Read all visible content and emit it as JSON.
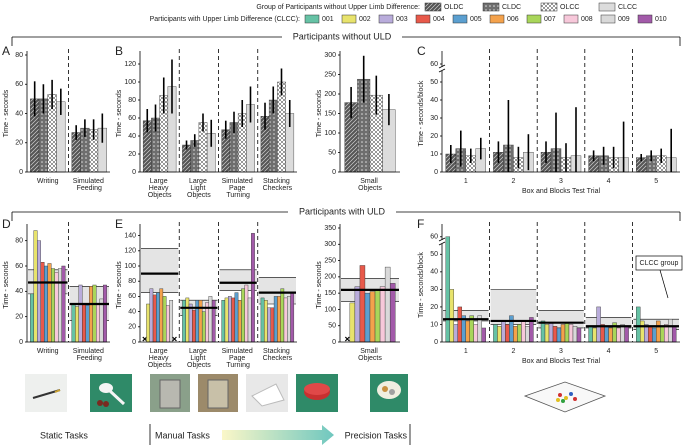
{
  "legend": {
    "groups_title": "Group of Participants without Upper Limb Difference:",
    "participants_title": "Participants with Upper Limb Difference (CLCC):"
  },
  "sections": [
    "Participants without ULD",
    "Participants with ULD"
  ],
  "task_groups": [
    "Static Tasks",
    "Manual Tasks",
    "Precision Tasks"
  ],
  "chart_data": [
    {
      "type": "bar",
      "panel": "A",
      "ylabel": "Time - seconds",
      "categories": [
        "Writing",
        "Simulated Feeding"
      ],
      "ylim": [
        0,
        80
      ],
      "yticks": [
        0,
        20,
        40,
        60,
        80
      ],
      "dividers": true,
      "series": [
        {
          "name": "OLDC",
          "color": "#555555",
          "pattern": "diagonal",
          "values": [
            50,
            27
          ],
          "errors": [
            12,
            5
          ]
        },
        {
          "name": "CLDC",
          "color": "#6e6e6e",
          "pattern": "dots",
          "values": [
            50,
            30
          ],
          "errors": [
            10,
            6
          ]
        },
        {
          "name": "OLCC",
          "color": "#ffffff",
          "pattern": "cross",
          "values": [
            53,
            29
          ],
          "errors": [
            10,
            7
          ]
        },
        {
          "name": "CLCC",
          "color": "#dcdcdc",
          "pattern": "none",
          "values": [
            48,
            30
          ],
          "errors": [
            9,
            10
          ]
        }
      ]
    },
    {
      "type": "bar",
      "panel": "B",
      "ylabel": "Time - seconds",
      "categories": [
        "Large Heavy Objects",
        "Large Light Objects",
        "Simulated Page Turning",
        "Stacking Checkers"
      ],
      "ylim": [
        0,
        130
      ],
      "yticks": [
        0,
        20,
        40,
        60,
        80,
        100,
        120
      ],
      "dividers": true,
      "series": [
        {
          "name": "OLDC",
          "color": "#555555",
          "pattern": "diagonal",
          "values": [
            57,
            30,
            47,
            62
          ],
          "errors": [
            13,
            5,
            10,
            15
          ]
        },
        {
          "name": "CLDC",
          "color": "#6e6e6e",
          "pattern": "dots",
          "values": [
            60,
            35,
            55,
            80
          ],
          "errors": [
            15,
            7,
            12,
            15
          ]
        },
        {
          "name": "OLCC",
          "color": "#ffffff",
          "pattern": "cross",
          "values": [
            85,
            55,
            65,
            100
          ],
          "errors": [
            20,
            10,
            15,
            15
          ]
        },
        {
          "name": "CLCC",
          "color": "#dcdcdc",
          "pattern": "none",
          "values": [
            95,
            43,
            75,
            65
          ],
          "errors": [
            30,
            15,
            20,
            15
          ]
        }
      ]
    },
    {
      "type": "bar",
      "ylabel": "Time - seconds",
      "categories": [
        "Small Objects"
      ],
      "ylim": [
        0,
        300
      ],
      "yticks": [
        0,
        50,
        100,
        150,
        200,
        250,
        300
      ],
      "dividers": false,
      "series": [
        {
          "name": "OLDC",
          "color": "#555555",
          "pattern": "diagonal",
          "values": [
            178
          ],
          "errors": [
            40
          ]
        },
        {
          "name": "CLDC",
          "color": "#6e6e6e",
          "pattern": "dots",
          "values": [
            238
          ],
          "errors": [
            60
          ]
        },
        {
          "name": "OLCC",
          "color": "#ffffff",
          "pattern": "cross",
          "values": [
            197
          ],
          "errors": [
            50
          ]
        },
        {
          "name": "CLCC",
          "color": "#dcdcdc",
          "pattern": "none",
          "values": [
            160
          ],
          "errors": [
            40
          ]
        }
      ]
    },
    {
      "type": "bar",
      "panel": "C",
      "ylabel": "Time - seconds/block",
      "xlabel": "Box and Blocks Test Trial",
      "categories": [
        "1",
        "2",
        "3",
        "4",
        "5"
      ],
      "ylim": [
        0,
        65
      ],
      "yticks": [
        0,
        10,
        20,
        30,
        40,
        50,
        60
      ],
      "dividers": true,
      "axis_break": true,
      "series": [
        {
          "name": "OLDC",
          "color": "#555555",
          "pattern": "diagonal",
          "values": [
            10,
            11,
            11,
            9,
            8
          ],
          "errors": [
            5,
            6,
            6,
            3,
            2
          ]
        },
        {
          "name": "CLDC",
          "color": "#6e6e6e",
          "pattern": "dots",
          "values": [
            13,
            15,
            13,
            9,
            9
          ],
          "errors": [
            10,
            25,
            20,
            5,
            3
          ]
        },
        {
          "name": "OLCC",
          "color": "#ffffff",
          "pattern": "cross",
          "values": [
            9,
            8,
            8,
            8,
            9
          ],
          "errors": [
            4,
            6,
            8,
            6,
            4
          ]
        },
        {
          "name": "CLCC",
          "color": "#dcdcdc",
          "pattern": "none",
          "values": [
            13,
            11,
            9,
            8,
            8
          ],
          "errors": [
            6,
            10,
            27,
            20,
            16
          ]
        }
      ]
    },
    {
      "type": "bar",
      "panel": "D",
      "ylabel": "Time - seconds",
      "categories": [
        "Writing",
        "Simulated Feeding"
      ],
      "ylim": [
        0,
        90
      ],
      "yticks": [
        0,
        20,
        40,
        60,
        80
      ],
      "dividers": true,
      "reference": [
        {
          "low": 38,
          "mean": 47,
          "high": 57
        },
        {
          "low": 17,
          "mean": 30,
          "high": 44
        }
      ],
      "series": [
        {
          "name": "001",
          "color": "#66c2a5",
          "values": [
            38,
            30
          ]
        },
        {
          "name": "002",
          "color": "#e8e36c",
          "values": [
            88,
            28
          ]
        },
        {
          "name": "003",
          "color": "#b9acdb",
          "values": [
            80,
            45
          ]
        },
        {
          "name": "004",
          "color": "#e8594a",
          "values": [
            63,
            30
          ]
        },
        {
          "name": "005",
          "color": "#5b9fd0",
          "values": [
            60,
            29
          ]
        },
        {
          "name": "006",
          "color": "#f4a24c",
          "values": [
            62,
            44
          ]
        },
        {
          "name": "007",
          "color": "#a9d65a",
          "values": [
            58,
            45
          ]
        },
        {
          "name": "008",
          "color": "#f7c8da",
          "values": [
            55,
            30
          ]
        },
        {
          "name": "009",
          "color": "#d9d9d9",
          "values": [
            58,
            34
          ]
        },
        {
          "name": "010",
          "color": "#a25aa9",
          "values": [
            60,
            45
          ]
        }
      ]
    },
    {
      "type": "bar",
      "panel": "E",
      "ylabel": "Time - seconds",
      "categories": [
        "Large Heavy Objects",
        "Large Light Objects",
        "Simulated Page Turning",
        "Stacking Checkers"
      ],
      "ylim": [
        0,
        150
      ],
      "yticks": [
        0,
        20,
        40,
        60,
        80,
        100,
        120,
        140
      ],
      "dividers": true,
      "reference": [
        {
          "low": 65,
          "mean": 90,
          "high": 123
        },
        {
          "low": 35,
          "mean": 45,
          "high": 55
        },
        {
          "low": 68,
          "mean": 78,
          "high": 95
        },
        {
          "low": 50,
          "mean": 65,
          "high": 85
        }
      ],
      "series": [
        {
          "name": "001",
          "color": "#66c2a5",
          "values": [
            null,
            55,
            55,
            58
          ]
        },
        {
          "name": "002",
          "color": "#e8e36c",
          "values": [
            50,
            58,
            58,
            55
          ]
        },
        {
          "name": "003",
          "color": "#b9acdb",
          "values": [
            70,
            50,
            60,
            45
          ]
        },
        {
          "name": "004",
          "color": "#e8594a",
          "values": [
            62,
            42,
            58,
            45
          ]
        },
        {
          "name": "005",
          "color": "#5b9fd0",
          "values": [
            65,
            55,
            65,
            60
          ]
        },
        {
          "name": "006",
          "color": "#f4a24c",
          "values": [
            70,
            55,
            55,
            60
          ]
        },
        {
          "name": "007",
          "color": "#a9d65a",
          "values": [
            60,
            40,
            70,
            70
          ]
        },
        {
          "name": "008",
          "color": "#f7c8da",
          "values": [
            48,
            52,
            75,
            58
          ]
        },
        {
          "name": "009",
          "color": "#d9d9d9",
          "values": [
            55,
            60,
            58,
            60
          ]
        },
        {
          "name": "010",
          "color": "#a25aa9",
          "values": [
            null,
            55,
            143,
            65
          ]
        }
      ]
    },
    {
      "type": "bar",
      "ylabel": "Time - seconds",
      "categories": [
        "Small Objects"
      ],
      "ylim": [
        0,
        350
      ],
      "yticks": [
        0,
        50,
        100,
        150,
        200,
        250,
        300,
        350
      ],
      "dividers": false,
      "reference": [
        {
          "low": 125,
          "mean": 160,
          "high": 195
        }
      ],
      "series": [
        {
          "name": "001",
          "color": "#66c2a5",
          "values": [
            null
          ]
        },
        {
          "name": "002",
          "color": "#e8e36c",
          "values": [
            120
          ]
        },
        {
          "name": "003",
          "color": "#b9acdb",
          "values": [
            170
          ]
        },
        {
          "name": "004",
          "color": "#e8594a",
          "values": [
            235
          ]
        },
        {
          "name": "005",
          "color": "#5b9fd0",
          "values": [
            150
          ]
        },
        {
          "name": "006",
          "color": "#f4a24c",
          "values": [
            155
          ]
        },
        {
          "name": "007",
          "color": "#a9d65a",
          "values": [
            160
          ]
        },
        {
          "name": "008",
          "color": "#f7c8da",
          "values": [
            170
          ]
        },
        {
          "name": "009",
          "color": "#d9d9d9",
          "values": [
            230
          ]
        },
        {
          "name": "010",
          "color": "#a25aa9",
          "values": [
            180
          ]
        }
      ]
    },
    {
      "type": "bar",
      "panel": "F",
      "ylabel": "Time - seconds/block",
      "xlabel": "Box and Blocks Test Trial",
      "categories": [
        "1",
        "2",
        "3",
        "4",
        "5"
      ],
      "ylim": [
        0,
        65
      ],
      "yticks": [
        0,
        10,
        20,
        30,
        40,
        50,
        60
      ],
      "dividers": true,
      "axis_break": true,
      "annotation": "CLCC group",
      "reference": [
        {
          "low": 12,
          "mean": 13,
          "high": 18
        },
        {
          "low": 10,
          "mean": 12,
          "high": 30
        },
        {
          "low": 8,
          "mean": 11,
          "high": 18
        },
        {
          "low": 8,
          "mean": 9,
          "high": 14
        },
        {
          "low": 7,
          "mean": 9,
          "high": 13
        }
      ],
      "series": [
        {
          "name": "001",
          "color": "#66c2a5",
          "values": [
            60,
            10,
            12,
            9,
            20
          ]
        },
        {
          "name": "002",
          "color": "#e8e36c",
          "values": [
            30,
            9,
            10,
            8,
            12
          ]
        },
        {
          "name": "003",
          "color": "#b9acdb",
          "values": [
            10,
            12,
            11,
            20,
            10
          ]
        },
        {
          "name": "004",
          "color": "#e8594a",
          "values": [
            20,
            10,
            9,
            10,
            9
          ]
        },
        {
          "name": "005",
          "color": "#5b9fd0",
          "values": [
            15,
            15,
            8,
            9,
            8
          ]
        },
        {
          "name": "006",
          "color": "#f4a24c",
          "values": [
            12,
            9,
            10,
            8,
            12
          ]
        },
        {
          "name": "007",
          "color": "#a9d65a",
          "values": [
            15,
            10,
            11,
            11,
            9
          ]
        },
        {
          "name": "008",
          "color": "#f7c8da",
          "values": [
            10,
            12,
            10,
            8,
            10
          ]
        },
        {
          "name": "009",
          "color": "#d9d9d9",
          "values": [
            15,
            9,
            9,
            10,
            13
          ]
        },
        {
          "name": "010",
          "color": "#a25aa9",
          "values": [
            8,
            14,
            8,
            9,
            9
          ]
        }
      ]
    }
  ]
}
